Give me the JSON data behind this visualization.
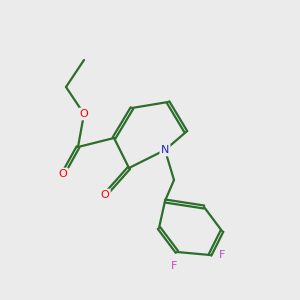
{
  "background_color": "#ebebeb",
  "bond_color": "#2d6e2d",
  "atom_colors": {
    "O": "#ff0000",
    "N": "#2222cc",
    "F": "#cc44cc",
    "C": "#2d6e2d"
  },
  "figsize": [
    3.0,
    3.0
  ],
  "dpi": 100
}
